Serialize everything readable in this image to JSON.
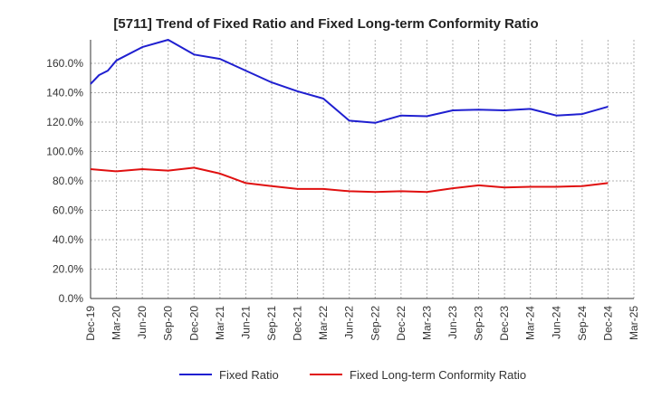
{
  "chart_data": {
    "type": "line",
    "title": "[5711]  Trend of Fixed Ratio and Fixed Long-term Conformity Ratio",
    "xlabel": "",
    "ylabel": "",
    "categories": [
      "Dec-19",
      "Mar-20",
      "Jun-20",
      "Sep-20",
      "Dec-20",
      "Mar-21",
      "Jun-21",
      "Sep-21",
      "Dec-21",
      "Mar-22",
      "Jun-22",
      "Sep-22",
      "Dec-22",
      "Mar-23",
      "Jun-23",
      "Sep-23",
      "Dec-23",
      "Mar-24",
      "Jun-24",
      "Sep-24",
      "Dec-24",
      "Mar-25"
    ],
    "yticks": [
      "0.0%",
      "20.0%",
      "40.0%",
      "60.0%",
      "80.0%",
      "100.0%",
      "120.0%",
      "140.0%",
      "160.0%"
    ],
    "ylim": [
      0,
      176
    ],
    "grid": true,
    "legend_position": "bottom",
    "series": [
      {
        "name": "Fixed Ratio",
        "color": "#1f1fd0",
        "x": [
          0,
          0.33,
          0.67,
          1,
          2,
          3,
          4,
          5,
          6,
          7,
          8,
          9,
          10,
          11,
          12,
          13,
          14,
          15,
          16,
          17,
          18,
          19,
          20
        ],
        "values": [
          146,
          152,
          155,
          162,
          171,
          176,
          166,
          163,
          155,
          147,
          141,
          136,
          121,
          119.5,
          124.5,
          124,
          128,
          128.5,
          128,
          129,
          124.5,
          125.5,
          130.5
        ]
      },
      {
        "name": "Fixed Long-term Conformity Ratio",
        "color": "#e01010",
        "x": [
          0,
          1,
          2,
          3,
          4,
          5,
          6,
          7,
          8,
          9,
          10,
          11,
          12,
          13,
          14,
          15,
          16,
          17,
          18,
          19,
          20
        ],
        "values": [
          88,
          86.5,
          88,
          87,
          89,
          85,
          78.5,
          76.5,
          74.5,
          74.5,
          73,
          72.5,
          73,
          72.5,
          75,
          77,
          75.5,
          76,
          76,
          76.5,
          78.5
        ]
      }
    ]
  }
}
